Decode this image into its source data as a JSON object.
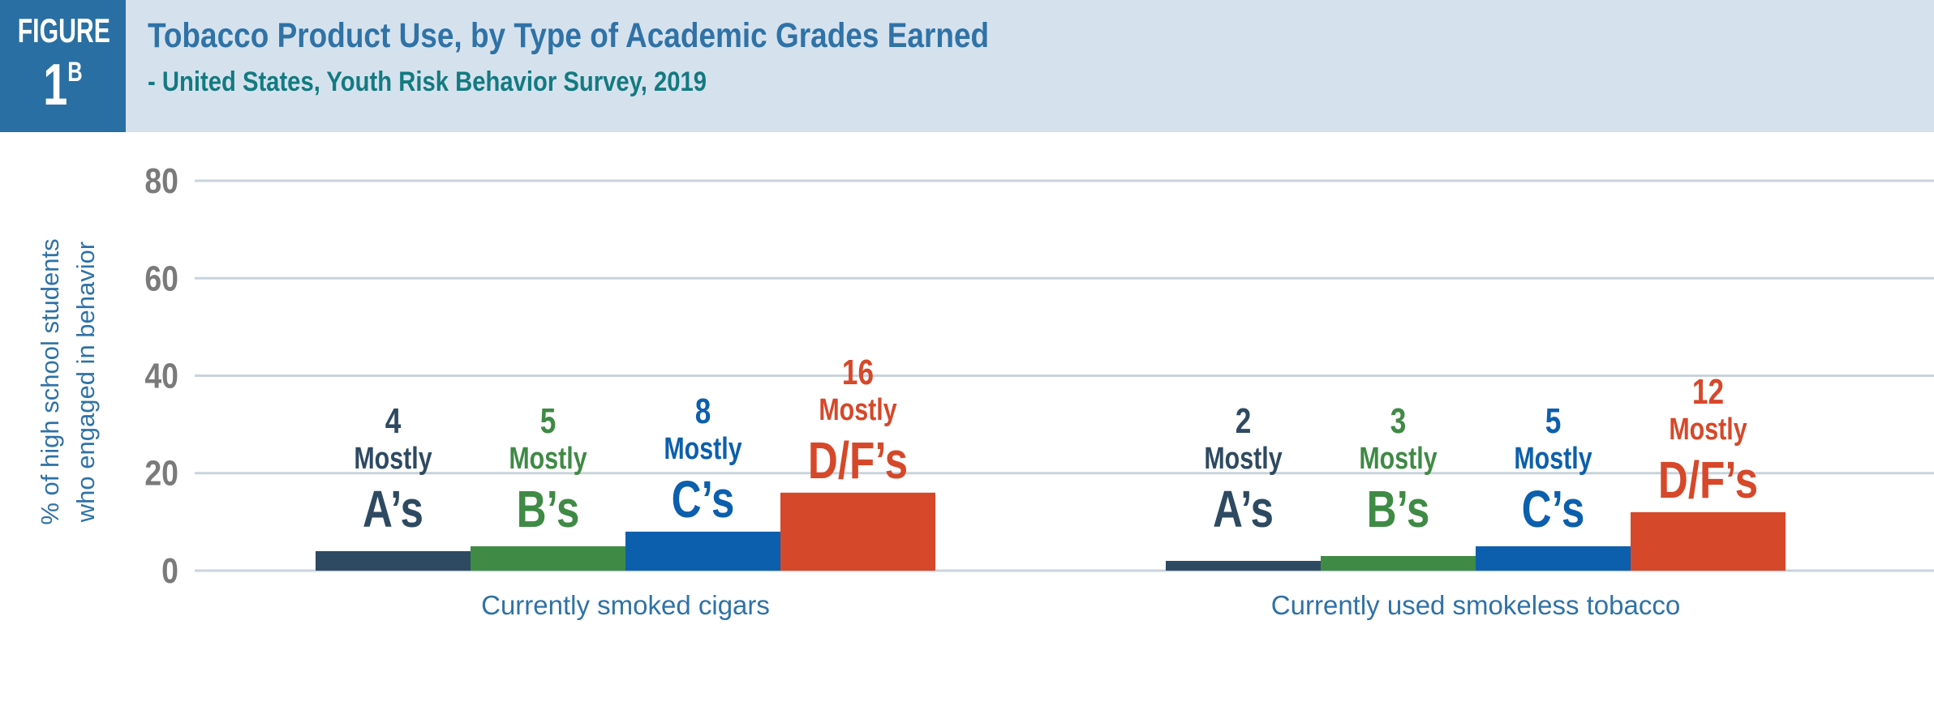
{
  "figure": {
    "word": "FIGURE",
    "number": "1",
    "letter": "B"
  },
  "header": {
    "title": "Tobacco Product  Use, by Type of Academic Grades Earned",
    "subtitle": "- United States, Youth Risk Behavior Survey, 2019"
  },
  "chart_data": {
    "type": "bar",
    "ylabel": [
      "% of high school students",
      "who engaged in behavior"
    ],
    "ylim": [
      0,
      80
    ],
    "yticks": [
      0,
      20,
      40,
      60,
      80
    ],
    "grid": true,
    "categories": [
      "Currently smoked cigars",
      "Currently used smokeless tobacco"
    ],
    "series": [
      {
        "name": "Mostly A's",
        "prefix": "Mostly",
        "grade": "A’s",
        "color": "#2e4a62",
        "values": [
          4,
          2
        ]
      },
      {
        "name": "Mostly B's",
        "prefix": "Mostly",
        "grade": "B’s",
        "color": "#3f8a45",
        "values": [
          5,
          3
        ]
      },
      {
        "name": "Mostly C's",
        "prefix": "Mostly",
        "grade": "C’s",
        "color": "#0c5fad",
        "values": [
          8,
          5
        ]
      },
      {
        "name": "Mostly D/F's",
        "prefix": "Mostly",
        "grade": "D/F’s",
        "color": "#d6482a",
        "values": [
          16,
          12
        ]
      }
    ]
  }
}
